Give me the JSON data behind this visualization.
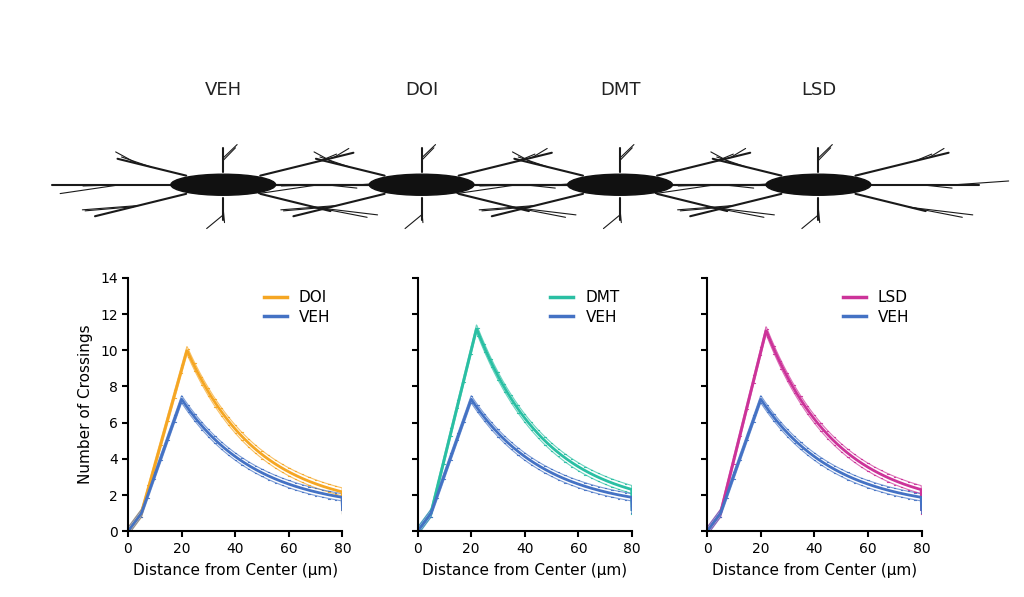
{
  "panels": [
    "DOI",
    "DMT",
    "LSD"
  ],
  "neuron_labels": [
    "VEH",
    "DOI",
    "DMT",
    "LSD"
  ],
  "x_min": 0,
  "x_max": 80,
  "y_min": 0,
  "y_max": 14,
  "y_ticks": [
    0,
    2,
    4,
    6,
    8,
    10,
    12,
    14
  ],
  "x_ticks": [
    0,
    20,
    40,
    60,
    80
  ],
  "xlabel": "Distance from Center (μm)",
  "ylabel": "Number of Crossings",
  "drug_colors": {
    "DOI": "#F5A623",
    "DMT": "#2ABFA3",
    "LSD": "#CC3399"
  },
  "veh_color": "#4472C4",
  "line_width": 2.0,
  "error_band_alpha": 0.0,
  "background_color": "#FFFFFF",
  "font_size": 11,
  "legend_font_size": 11,
  "tick_font_size": 10,
  "veh_peak": 7.3,
  "veh_peak_x": 20,
  "doi_peak": 10.0,
  "doi_peak_x": 22,
  "dmt_peak": 11.2,
  "dmt_peak_x": 22,
  "lsd_peak": 11.1,
  "lsd_peak_x": 22
}
